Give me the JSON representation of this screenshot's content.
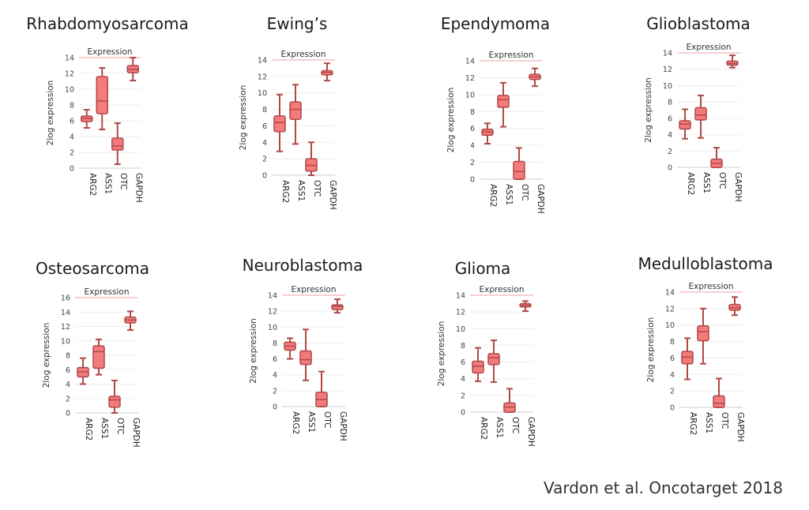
{
  "citation": "Vardon et al. Oncotarget 2018",
  "colors": {
    "box_fill": "#f47b7b",
    "box_stroke": "#b04848",
    "grid": "#eeeeee",
    "top_line": "#f0a0a0",
    "axis_text": "#444444"
  },
  "chart_data": [
    {
      "type": "box",
      "title": "Rhabdomyosarcoma",
      "subtitle": "Expression",
      "ylabel": "2log expression",
      "ylim": [
        0,
        14
      ],
      "yticks": [
        0,
        2,
        4,
        6,
        8,
        10,
        12,
        14
      ],
      "categories": [
        "ARG2",
        "ASS1",
        "OTC",
        "GAPDH"
      ],
      "boxes": [
        {
          "min": 5.1,
          "q1": 5.9,
          "median": 6.3,
          "q3": 6.6,
          "max": 7.4
        },
        {
          "min": 4.9,
          "q1": 6.9,
          "median": 8.5,
          "q3": 11.6,
          "max": 12.7
        },
        {
          "min": 0.5,
          "q1": 2.3,
          "median": 2.8,
          "q3": 3.8,
          "max": 5.7
        },
        {
          "min": 11.1,
          "q1": 12.1,
          "median": 12.5,
          "q3": 13.0,
          "max": 14.0
        }
      ]
    },
    {
      "type": "box",
      "title": "Ewing’s",
      "subtitle": "Expression",
      "ylabel": "2log expression",
      "ylim": [
        0,
        14
      ],
      "yticks": [
        0,
        2,
        4,
        6,
        8,
        10,
        12,
        14
      ],
      "categories": [
        "ARG2",
        "ASS1",
        "OTC",
        "GAPDH"
      ],
      "boxes": [
        {
          "min": 2.9,
          "q1": 5.3,
          "median": 6.4,
          "q3": 7.2,
          "max": 9.8
        },
        {
          "min": 3.8,
          "q1": 6.8,
          "median": 8.0,
          "q3": 8.9,
          "max": 11.0
        },
        {
          "min": 0.0,
          "q1": 0.5,
          "median": 1.2,
          "q3": 2.0,
          "max": 4.0
        },
        {
          "min": 11.5,
          "q1": 12.2,
          "median": 12.5,
          "q3": 12.7,
          "max": 13.6
        }
      ]
    },
    {
      "type": "box",
      "title": "Ependymoma",
      "subtitle": "Expression",
      "ylabel": "2log expression",
      "ylim": [
        0,
        14
      ],
      "yticks": [
        0,
        2,
        4,
        6,
        8,
        10,
        12,
        14
      ],
      "categories": [
        "ARG2",
        "ASS1",
        "OTC",
        "GAPDH"
      ],
      "boxes": [
        {
          "min": 4.2,
          "q1": 5.2,
          "median": 5.6,
          "q3": 5.9,
          "max": 6.6
        },
        {
          "min": 6.2,
          "q1": 8.5,
          "median": 9.4,
          "q3": 9.9,
          "max": 11.4
        },
        {
          "min": 0.0,
          "q1": 0.0,
          "median": 0.9,
          "q3": 2.1,
          "max": 3.7
        },
        {
          "min": 11.0,
          "q1": 11.8,
          "median": 12.1,
          "q3": 12.4,
          "max": 13.1
        }
      ]
    },
    {
      "type": "box",
      "title": "Glioblastoma",
      "subtitle": "Expression",
      "ylabel": "2log expression",
      "ylim": [
        0,
        14
      ],
      "yticks": [
        0,
        2,
        4,
        6,
        8,
        10,
        12,
        14
      ],
      "categories": [
        "ARG2",
        "ASS1",
        "OTC",
        "GAPDH"
      ],
      "boxes": [
        {
          "min": 3.5,
          "q1": 4.7,
          "median": 5.3,
          "q3": 5.7,
          "max": 7.1
        },
        {
          "min": 3.6,
          "q1": 5.8,
          "median": 6.4,
          "q3": 7.3,
          "max": 8.8
        },
        {
          "min": 0.0,
          "q1": 0.0,
          "median": 0.5,
          "q3": 1.0,
          "max": 2.4
        },
        {
          "min": 12.2,
          "q1": 12.5,
          "median": 12.7,
          "q3": 13.0,
          "max": 13.7
        }
      ]
    },
    {
      "type": "box",
      "title": "Osteosarcoma",
      "subtitle": "Expression",
      "ylabel": "2log expression",
      "ylim": [
        0,
        16
      ],
      "yticks": [
        0,
        2,
        4,
        6,
        8,
        10,
        12,
        14,
        16
      ],
      "categories": [
        "ARG2",
        "ASS1",
        "OTC",
        "GAPDH"
      ],
      "boxes": [
        {
          "min": 4.0,
          "q1": 5.0,
          "median": 5.7,
          "q3": 6.3,
          "max": 7.6
        },
        {
          "min": 5.3,
          "q1": 6.2,
          "median": 8.5,
          "q3": 9.3,
          "max": 10.2
        },
        {
          "min": 0.0,
          "q1": 0.8,
          "median": 1.8,
          "q3": 2.3,
          "max": 4.5
        },
        {
          "min": 11.5,
          "q1": 12.5,
          "median": 12.9,
          "q3": 13.3,
          "max": 14.1
        }
      ]
    },
    {
      "type": "box",
      "title": "Neuroblastoma",
      "subtitle": "Expression",
      "ylabel": "2log expression",
      "ylim": [
        0,
        14
      ],
      "yticks": [
        0,
        2,
        4,
        6,
        8,
        10,
        12,
        14
      ],
      "categories": [
        "ARG2",
        "ASS1",
        "OTC",
        "GAPDH"
      ],
      "boxes": [
        {
          "min": 6.0,
          "q1": 7.1,
          "median": 7.6,
          "q3": 8.1,
          "max": 8.6
        },
        {
          "min": 3.3,
          "q1": 5.3,
          "median": 5.9,
          "q3": 7.0,
          "max": 9.7
        },
        {
          "min": 0.0,
          "q1": 0.0,
          "median": 0.9,
          "q3": 1.8,
          "max": 4.4
        },
        {
          "min": 11.8,
          "q1": 12.2,
          "median": 12.6,
          "q3": 12.8,
          "max": 13.5
        }
      ]
    },
    {
      "type": "box",
      "title": "Glioma",
      "subtitle": "Expression",
      "ylabel": "2log expression",
      "ylim": [
        0,
        14
      ],
      "yticks": [
        0,
        2,
        4,
        6,
        8,
        10,
        12,
        14
      ],
      "categories": [
        "ARG2",
        "ASS1",
        "OTC",
        "GAPDH"
      ],
      "boxes": [
        {
          "min": 3.7,
          "q1": 4.7,
          "median": 5.5,
          "q3": 6.1,
          "max": 7.7
        },
        {
          "min": 3.6,
          "q1": 5.7,
          "median": 6.5,
          "q3": 7.0,
          "max": 8.6
        },
        {
          "min": 0.0,
          "q1": 0.0,
          "median": 0.6,
          "q3": 1.1,
          "max": 2.8
        },
        {
          "min": 12.1,
          "q1": 12.6,
          "median": 12.8,
          "q3": 13.0,
          "max": 13.3
        }
      ]
    },
    {
      "type": "box",
      "title": "Medulloblastoma",
      "subtitle": "Expression",
      "ylabel": "2log expression",
      "ylim": [
        0,
        14
      ],
      "yticks": [
        0,
        2,
        4,
        6,
        8,
        10,
        12,
        14
      ],
      "categories": [
        "ARG2",
        "ASS1",
        "OTC",
        "GAPDH"
      ],
      "boxes": [
        {
          "min": 3.4,
          "q1": 5.3,
          "median": 6.1,
          "q3": 6.8,
          "max": 8.4
        },
        {
          "min": 5.3,
          "q1": 8.1,
          "median": 9.2,
          "q3": 9.9,
          "max": 12.0
        },
        {
          "min": 0.0,
          "q1": 0.0,
          "median": 0.5,
          "q3": 1.4,
          "max": 3.5
        },
        {
          "min": 11.2,
          "q1": 11.8,
          "median": 12.1,
          "q3": 12.5,
          "max": 13.4
        }
      ]
    }
  ]
}
